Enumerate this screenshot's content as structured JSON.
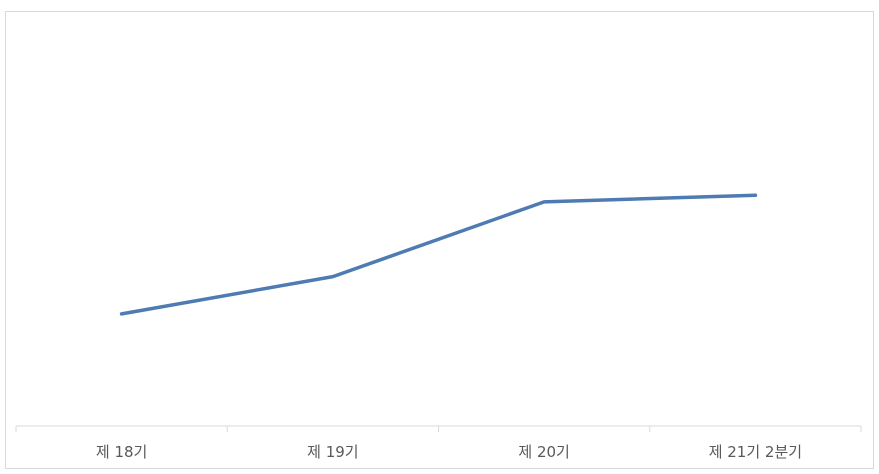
{
  "chart_data": {
    "type": "line",
    "categories": [
      "제 18기",
      "제 19기",
      "제 20기",
      "제 21기 2분기"
    ],
    "series": [
      {
        "values": [
          27,
          36,
          54,
          55.6
        ]
      }
    ],
    "ylim": [
      0,
      100
    ],
    "grid": false,
    "legend": "none",
    "colors": {
      "line": "#4e7bb1",
      "axis": "#d9d9d9",
      "label": "#595959",
      "background": "#ffffff"
    }
  }
}
